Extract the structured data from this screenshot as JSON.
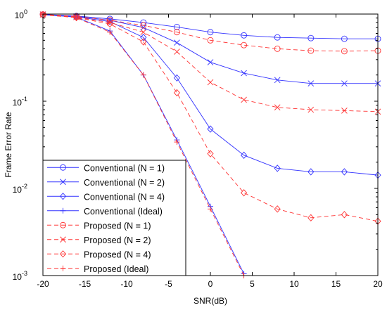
{
  "chart_data": {
    "type": "line",
    "xlabel": "SNR(dB)",
    "ylabel": "Frame Error Rate",
    "x_scale": "linear",
    "y_scale": "log",
    "xlim": [
      -20,
      20
    ],
    "ylim": [
      0.001,
      1
    ],
    "x_ticks": [
      -20,
      -15,
      -10,
      -5,
      0,
      5,
      10,
      15,
      20
    ],
    "x_tick_labels": [
      "-20",
      "-15",
      "-10",
      "-5",
      "0",
      "5",
      "10",
      "15",
      "20"
    ],
    "y_ticks": [
      0.001,
      0.01,
      0.1,
      1
    ],
    "y_tick_labels": [
      {
        "base": "10",
        "exp": "-3"
      },
      {
        "base": "10",
        "exp": "-2"
      },
      {
        "base": "10",
        "exp": "-1"
      },
      {
        "base": "10",
        "exp": "0"
      }
    ],
    "grid": false,
    "legend_position": "bottom-left",
    "colors": {
      "conventional": "#3333ff",
      "proposed": "#ff3333"
    },
    "series": [
      {
        "name": "Conventional (N = 1)",
        "group": "conventional",
        "marker": "circle",
        "dashed": false,
        "x": [
          -20,
          -16,
          -12,
          -8,
          -4,
          0,
          4,
          8,
          12,
          16,
          20
        ],
        "y": [
          0.99,
          0.95,
          0.88,
          0.8,
          0.71,
          0.62,
          0.57,
          0.54,
          0.53,
          0.52,
          0.52
        ]
      },
      {
        "name": "Conventional (N = 2)",
        "group": "conventional",
        "marker": "x",
        "dashed": false,
        "x": [
          -20,
          -16,
          -12,
          -8,
          -4,
          0,
          4,
          8,
          12,
          16,
          20
        ],
        "y": [
          0.99,
          0.94,
          0.85,
          0.7,
          0.47,
          0.28,
          0.21,
          0.175,
          0.16,
          0.16,
          0.16
        ]
      },
      {
        "name": "Conventional (N = 4)",
        "group": "conventional",
        "marker": "diamond",
        "dashed": false,
        "x": [
          -20,
          -16,
          -12,
          -8,
          -4,
          0,
          4,
          8,
          12,
          16,
          20
        ],
        "y": [
          0.98,
          0.93,
          0.82,
          0.54,
          0.185,
          0.048,
          0.024,
          0.017,
          0.0155,
          0.0155,
          0.0142
        ]
      },
      {
        "name": "Conventional (Ideal)",
        "group": "conventional",
        "marker": "plus",
        "dashed": false,
        "x": [
          -20,
          -16,
          -12,
          -8,
          -4,
          0,
          4
        ],
        "y": [
          0.99,
          0.92,
          0.64,
          0.2,
          0.036,
          0.0062,
          0.00105
        ]
      },
      {
        "name": "Proposed (N = 1)",
        "group": "proposed",
        "marker": "circle",
        "dashed": true,
        "x": [
          -20,
          -16,
          -12,
          -8,
          -4,
          0,
          4,
          8,
          12,
          16,
          20
        ],
        "y": [
          0.99,
          0.94,
          0.85,
          0.74,
          0.62,
          0.5,
          0.44,
          0.4,
          0.38,
          0.375,
          0.38
        ]
      },
      {
        "name": "Proposed (N = 2)",
        "group": "proposed",
        "marker": "x",
        "dashed": true,
        "x": [
          -20,
          -16,
          -12,
          -8,
          -4,
          0,
          4,
          8,
          12,
          16,
          20
        ],
        "y": [
          0.99,
          0.92,
          0.8,
          0.62,
          0.37,
          0.165,
          0.104,
          0.085,
          0.08,
          0.078,
          0.076
        ]
      },
      {
        "name": "Proposed (N = 4)",
        "group": "proposed",
        "marker": "diamond",
        "dashed": true,
        "x": [
          -20,
          -16,
          -12,
          -8,
          -4,
          0,
          4,
          8,
          12,
          16,
          20
        ],
        "y": [
          0.98,
          0.91,
          0.77,
          0.48,
          0.125,
          0.025,
          0.0089,
          0.0058,
          0.0046,
          0.005,
          0.0042
        ]
      },
      {
        "name": "Proposed (Ideal)",
        "group": "proposed",
        "marker": "plus",
        "dashed": true,
        "x": [
          -20,
          -16,
          -12,
          -8,
          -4,
          0,
          4
        ],
        "y": [
          0.99,
          0.91,
          0.62,
          0.2,
          0.034,
          0.0058,
          0.001
        ]
      }
    ]
  }
}
